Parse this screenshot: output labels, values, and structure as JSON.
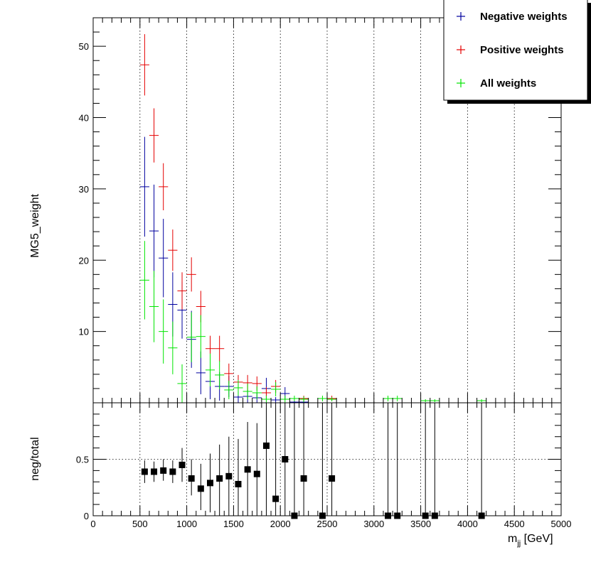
{
  "chart_data": [
    {
      "type": "scatter",
      "panel": "main",
      "ylabel": "MG5_weight",
      "xlim": [
        0,
        5000
      ],
      "ylim": [
        0,
        54
      ],
      "yticks": [
        10,
        20,
        30,
        40,
        50
      ],
      "grid": "vertical dotted lines at x ticks",
      "legend_position": "top-right",
      "series": [
        {
          "name": "Negative weights",
          "color": "#00009e",
          "x": [
            550,
            650,
            750,
            850,
            950,
            1050,
            1150,
            1250,
            1350,
            1450,
            1550,
            1650,
            1750,
            1850,
            1950,
            2050,
            2150,
            2250
          ],
          "y": [
            30.3,
            24.1,
            20.3,
            13.8,
            13.0,
            8.9,
            4.2,
            3.0,
            2.3,
            2.3,
            0.8,
            0.9,
            0.7,
            2.0,
            0.4,
            1.3,
            0.1,
            0.1
          ],
          "err": [
            7.0,
            6.5,
            5.5,
            4.5,
            4.0,
            4.0,
            3.0,
            2.5,
            2.0,
            1.5,
            0.8,
            0.9,
            0.7,
            1.5,
            0.4,
            0.9,
            0.1,
            0.1
          ]
        },
        {
          "name": "Positive weights",
          "color": "#e40000",
          "x": [
            550,
            650,
            750,
            850,
            950,
            1050,
            1150,
            1250,
            1350,
            1450,
            1550,
            1650,
            1750,
            1850,
            1950,
            2250,
            2550
          ],
          "y": [
            47.4,
            37.5,
            30.3,
            21.4,
            15.7,
            18.0,
            13.5,
            7.6,
            7.6,
            4.1,
            2.9,
            2.8,
            2.7,
            1.4,
            2.3,
            0.6,
            0.6
          ],
          "err": [
            4.3,
            3.8,
            3.3,
            2.9,
            2.6,
            2.4,
            2.2,
            1.8,
            1.8,
            1.4,
            1.0,
            1.1,
            1.0,
            0.8,
            0.9,
            0.4,
            0.4
          ]
        },
        {
          "name": "All weights",
          "color": "#00e400",
          "x": [
            550,
            650,
            750,
            850,
            950,
            1050,
            1150,
            1250,
            1350,
            1450,
            1550,
            1650,
            1750,
            1850,
            1950,
            2050,
            2150,
            2250,
            2450,
            2550,
            3150,
            3250,
            3550,
            3650,
            4150
          ],
          "y": [
            17.2,
            13.5,
            10.0,
            7.7,
            2.7,
            9.2,
            9.3,
            4.6,
            3.9,
            1.8,
            2.1,
            1.6,
            1.4,
            0.5,
            1.9,
            0.5,
            0.6,
            0.5,
            0.6,
            0.5,
            0.6,
            0.6,
            0.3,
            0.3,
            0.3
          ],
          "err": [
            5.5,
            5.0,
            4.5,
            3.7,
            2.7,
            3.5,
            3.0,
            2.3,
            2.0,
            1.3,
            1.1,
            1.1,
            0.9,
            0.5,
            1.0,
            0.5,
            0.4,
            0.4,
            0.4,
            0.3,
            0.4,
            0.4,
            0.2,
            0.2,
            0.2
          ]
        }
      ]
    },
    {
      "type": "scatter",
      "panel": "ratio",
      "ylabel": "neg/total",
      "xlabel_main": "m",
      "xlabel_sub": "jj",
      "xlabel_unit": " [GeV]",
      "xlim": [
        0,
        5000
      ],
      "ylim": [
        0,
        1.0
      ],
      "yticks": [
        0,
        0.5
      ],
      "xticks": [
        0,
        500,
        1000,
        1500,
        2000,
        2500,
        3000,
        3500,
        4000,
        4500,
        5000
      ],
      "reference_line": 0.5,
      "series": [
        {
          "color": "#000000",
          "x": [
            550,
            650,
            750,
            850,
            950,
            1050,
            1150,
            1250,
            1350,
            1450,
            1550,
            1650,
            1750,
            1850,
            1950,
            2050,
            2150,
            2250,
            2450,
            2550,
            3150,
            3250,
            3550,
            3650,
            4150
          ],
          "y": [
            0.39,
            0.39,
            0.4,
            0.39,
            0.45,
            0.33,
            0.24,
            0.29,
            0.33,
            0.35,
            0.28,
            0.41,
            0.37,
            0.62,
            0.15,
            0.5,
            0.0,
            0.33,
            0.0,
            0.33,
            0.0,
            0.0,
            0.0,
            0.0,
            0.0
          ],
          "err_low": [
            0.1,
            0.09,
            0.09,
            0.1,
            0.15,
            0.15,
            0.19,
            0.26,
            0.33,
            0.35,
            0.28,
            0.41,
            0.37,
            0.62,
            0.15,
            0.5,
            0.0,
            0.33,
            0.0,
            0.33,
            0.0,
            0.0,
            0.0,
            0.0,
            0.0
          ],
          "err_high": [
            0.1,
            0.09,
            0.1,
            0.1,
            0.15,
            0.17,
            0.22,
            0.26,
            0.3,
            0.35,
            0.4,
            0.42,
            0.45,
            0.38,
            0.85,
            0.5,
            1.0,
            0.67,
            1.0,
            0.67,
            1.0,
            1.0,
            1.0,
            1.0,
            1.0
          ]
        }
      ]
    }
  ],
  "legend": {
    "entries": [
      "Negative weights",
      "Positive weights",
      "All weights"
    ]
  }
}
